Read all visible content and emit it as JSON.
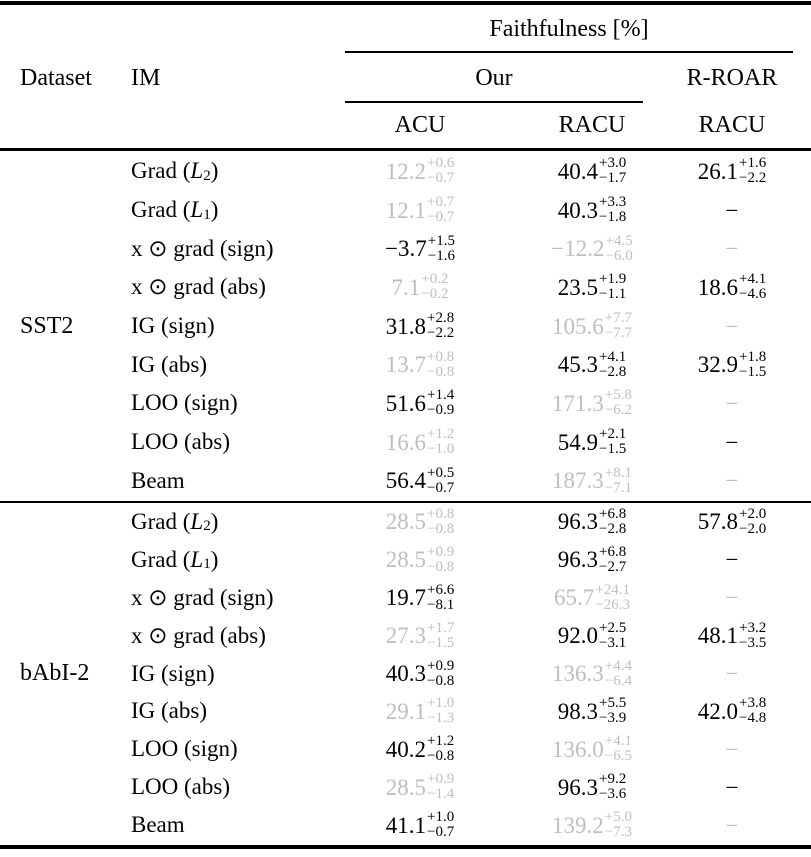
{
  "colors": {
    "ink": "#000000",
    "dim_value": "#bebebe",
    "background": "#ffffff"
  },
  "header": {
    "faithfulness": "Faithfulness [%]",
    "dataset": "Dataset",
    "im": "IM",
    "our": "Our",
    "rroar": "R-ROAR",
    "col_acu": "ACU",
    "col_racu": "RACU",
    "col_rroar_racu": "RACU"
  },
  "sections": [
    {
      "dataset": "SST2",
      "rows": [
        {
          "im": [
            {
              "t": "Grad (",
              "s": "p"
            },
            {
              "t": "L",
              "s": "i"
            },
            {
              "t": "2",
              "s": "sub"
            },
            {
              "t": ")",
              "s": "p"
            }
          ],
          "acu": {
            "main": "12.2",
            "sup": "+0.6",
            "sub": "−0.7",
            "dim": true
          },
          "racu": {
            "main": "40.4",
            "sup": "+3.0",
            "sub": "−1.7",
            "dim": false
          },
          "rroar": {
            "main": "26.1",
            "sup": "+1.6",
            "sub": "−2.2",
            "dim": false
          }
        },
        {
          "im": [
            {
              "t": "Grad (",
              "s": "p"
            },
            {
              "t": "L",
              "s": "i"
            },
            {
              "t": "1",
              "s": "sub"
            },
            {
              "t": ")",
              "s": "p"
            }
          ],
          "acu": {
            "main": "12.1",
            "sup": "+0.7",
            "sub": "−0.7",
            "dim": true
          },
          "racu": {
            "main": "40.3",
            "sup": "+3.3",
            "sub": "−1.8",
            "dim": false
          },
          "rroar": {
            "dash": "−",
            "dim": false
          }
        },
        {
          "im": [
            {
              "t": "x ⊙ grad (sign)",
              "s": "p"
            }
          ],
          "acu": {
            "main": "−3.7",
            "sup": "+1.5",
            "sub": "−1.6",
            "dim": false
          },
          "racu": {
            "main": "−12.2",
            "sup": "+4.5",
            "sub": "−6.0",
            "dim": true
          },
          "rroar": {
            "dash": "−",
            "dim": true
          }
        },
        {
          "im": [
            {
              "t": "x ⊙ grad (abs)",
              "s": "p"
            }
          ],
          "acu": {
            "main": "7.1",
            "sup": "+0.2",
            "sub": "−0.2",
            "dim": true
          },
          "racu": {
            "main": "23.5",
            "sup": "+1.9",
            "sub": "−1.1",
            "dim": false
          },
          "rroar": {
            "main": "18.6",
            "sup": "+4.1",
            "sub": "−4.6",
            "dim": false
          }
        },
        {
          "im": [
            {
              "t": "IG (sign)",
              "s": "p"
            }
          ],
          "acu": {
            "main": "31.8",
            "sup": "+2.8",
            "sub": "−2.2",
            "dim": false
          },
          "racu": {
            "main": "105.6",
            "sup": "+7.7",
            "sub": "−7.7",
            "dim": true
          },
          "rroar": {
            "dash": "−",
            "dim": true
          }
        },
        {
          "im": [
            {
              "t": "IG (abs)",
              "s": "p"
            }
          ],
          "acu": {
            "main": "13.7",
            "sup": "+0.8",
            "sub": "−0.8",
            "dim": true
          },
          "racu": {
            "main": "45.3",
            "sup": "+4.1",
            "sub": "−2.8",
            "dim": false
          },
          "rroar": {
            "main": "32.9",
            "sup": "+1.8",
            "sub": "−1.5",
            "dim": false
          }
        },
        {
          "im": [
            {
              "t": "LOO (sign)",
              "s": "p"
            }
          ],
          "acu": {
            "main": "51.6",
            "sup": "+1.4",
            "sub": "−0.9",
            "dim": false
          },
          "racu": {
            "main": "171.3",
            "sup": "+5.8",
            "sub": "−6.2",
            "dim": true
          },
          "rroar": {
            "dash": "−",
            "dim": true
          }
        },
        {
          "im": [
            {
              "t": "LOO (abs)",
              "s": "p"
            }
          ],
          "acu": {
            "main": "16.6",
            "sup": "+1.2",
            "sub": "−1.0",
            "dim": true
          },
          "racu": {
            "main": "54.9",
            "sup": "+2.1",
            "sub": "−1.5",
            "dim": false
          },
          "rroar": {
            "dash": "−",
            "dim": false
          }
        },
        {
          "im": [
            {
              "t": "Beam",
              "s": "p"
            }
          ],
          "acu": {
            "main": "56.4",
            "sup": "+0.5",
            "sub": "−0.7",
            "dim": false
          },
          "racu": {
            "main": "187.3",
            "sup": "+8.1",
            "sub": "−7.1",
            "dim": true
          },
          "rroar": {
            "dash": "−",
            "dim": true
          }
        }
      ]
    },
    {
      "dataset": "bAbI-2",
      "rows": [
        {
          "im": [
            {
              "t": "Grad (",
              "s": "p"
            },
            {
              "t": "L",
              "s": "i"
            },
            {
              "t": "2",
              "s": "sub"
            },
            {
              "t": ")",
              "s": "p"
            }
          ],
          "acu": {
            "main": "28.5",
            "sup": "+0.8",
            "sub": "−0.8",
            "dim": true
          },
          "racu": {
            "main": "96.3",
            "sup": "+6.8",
            "sub": "−2.8",
            "dim": false
          },
          "rroar": {
            "main": "57.8",
            "sup": "+2.0",
            "sub": "−2.0",
            "dim": false
          }
        },
        {
          "im": [
            {
              "t": "Grad (",
              "s": "p"
            },
            {
              "t": "L",
              "s": "i"
            },
            {
              "t": "1",
              "s": "sub"
            },
            {
              "t": ")",
              "s": "p"
            }
          ],
          "acu": {
            "main": "28.5",
            "sup": "+0.9",
            "sub": "−0.8",
            "dim": true
          },
          "racu": {
            "main": "96.3",
            "sup": "+6.8",
            "sub": "−2.7",
            "dim": false
          },
          "rroar": {
            "dash": "−",
            "dim": false
          }
        },
        {
          "im": [
            {
              "t": "x ⊙ grad (sign)",
              "s": "p"
            }
          ],
          "acu": {
            "main": "19.7",
            "sup": "+6.6",
            "sub": "−8.1",
            "dim": false
          },
          "racu": {
            "main": "65.7",
            "sup": "+24.1",
            "sub": "−26.3",
            "dim": true
          },
          "rroar": {
            "dash": "−",
            "dim": true
          }
        },
        {
          "im": [
            {
              "t": "x ⊙ grad (abs)",
              "s": "p"
            }
          ],
          "acu": {
            "main": "27.3",
            "sup": "+1.7",
            "sub": "−1.5",
            "dim": true
          },
          "racu": {
            "main": "92.0",
            "sup": "+2.5",
            "sub": "−3.1",
            "dim": false
          },
          "rroar": {
            "main": "48.1",
            "sup": "+3.2",
            "sub": "−3.5",
            "dim": false
          }
        },
        {
          "im": [
            {
              "t": "IG (sign)",
              "s": "p"
            }
          ],
          "acu": {
            "main": "40.3",
            "sup": "+0.9",
            "sub": "−0.8",
            "dim": false
          },
          "racu": {
            "main": "136.3",
            "sup": "+4.4",
            "sub": "−6.4",
            "dim": true
          },
          "rroar": {
            "dash": "−",
            "dim": true
          }
        },
        {
          "im": [
            {
              "t": "IG (abs)",
              "s": "p"
            }
          ],
          "acu": {
            "main": "29.1",
            "sup": "+1.0",
            "sub": "−1.3",
            "dim": true
          },
          "racu": {
            "main": "98.3",
            "sup": "+5.5",
            "sub": "−3.9",
            "dim": false
          },
          "rroar": {
            "main": "42.0",
            "sup": "+3.8",
            "sub": "−4.8",
            "dim": false
          }
        },
        {
          "im": [
            {
              "t": "LOO (sign)",
              "s": "p"
            }
          ],
          "acu": {
            "main": "40.2",
            "sup": "+1.2",
            "sub": "−0.8",
            "dim": false
          },
          "racu": {
            "main": "136.0",
            "sup": "+4.1",
            "sub": "−6.5",
            "dim": true
          },
          "rroar": {
            "dash": "−",
            "dim": true
          }
        },
        {
          "im": [
            {
              "t": "LOO (abs)",
              "s": "p"
            }
          ],
          "acu": {
            "main": "28.5",
            "sup": "+0.9",
            "sub": "−1.4",
            "dim": true
          },
          "racu": {
            "main": "96.3",
            "sup": "+9.2",
            "sub": "−3.6",
            "dim": false
          },
          "rroar": {
            "dash": "−",
            "dim": false
          }
        },
        {
          "im": [
            {
              "t": "Beam",
              "s": "p"
            }
          ],
          "acu": {
            "main": "41.1",
            "sup": "+1.0",
            "sub": "−0.7",
            "dim": false
          },
          "racu": {
            "main": "139.2",
            "sup": "+5.0",
            "sub": "−7.3",
            "dim": true
          },
          "rroar": {
            "dash": "−",
            "dim": true
          }
        }
      ]
    }
  ]
}
